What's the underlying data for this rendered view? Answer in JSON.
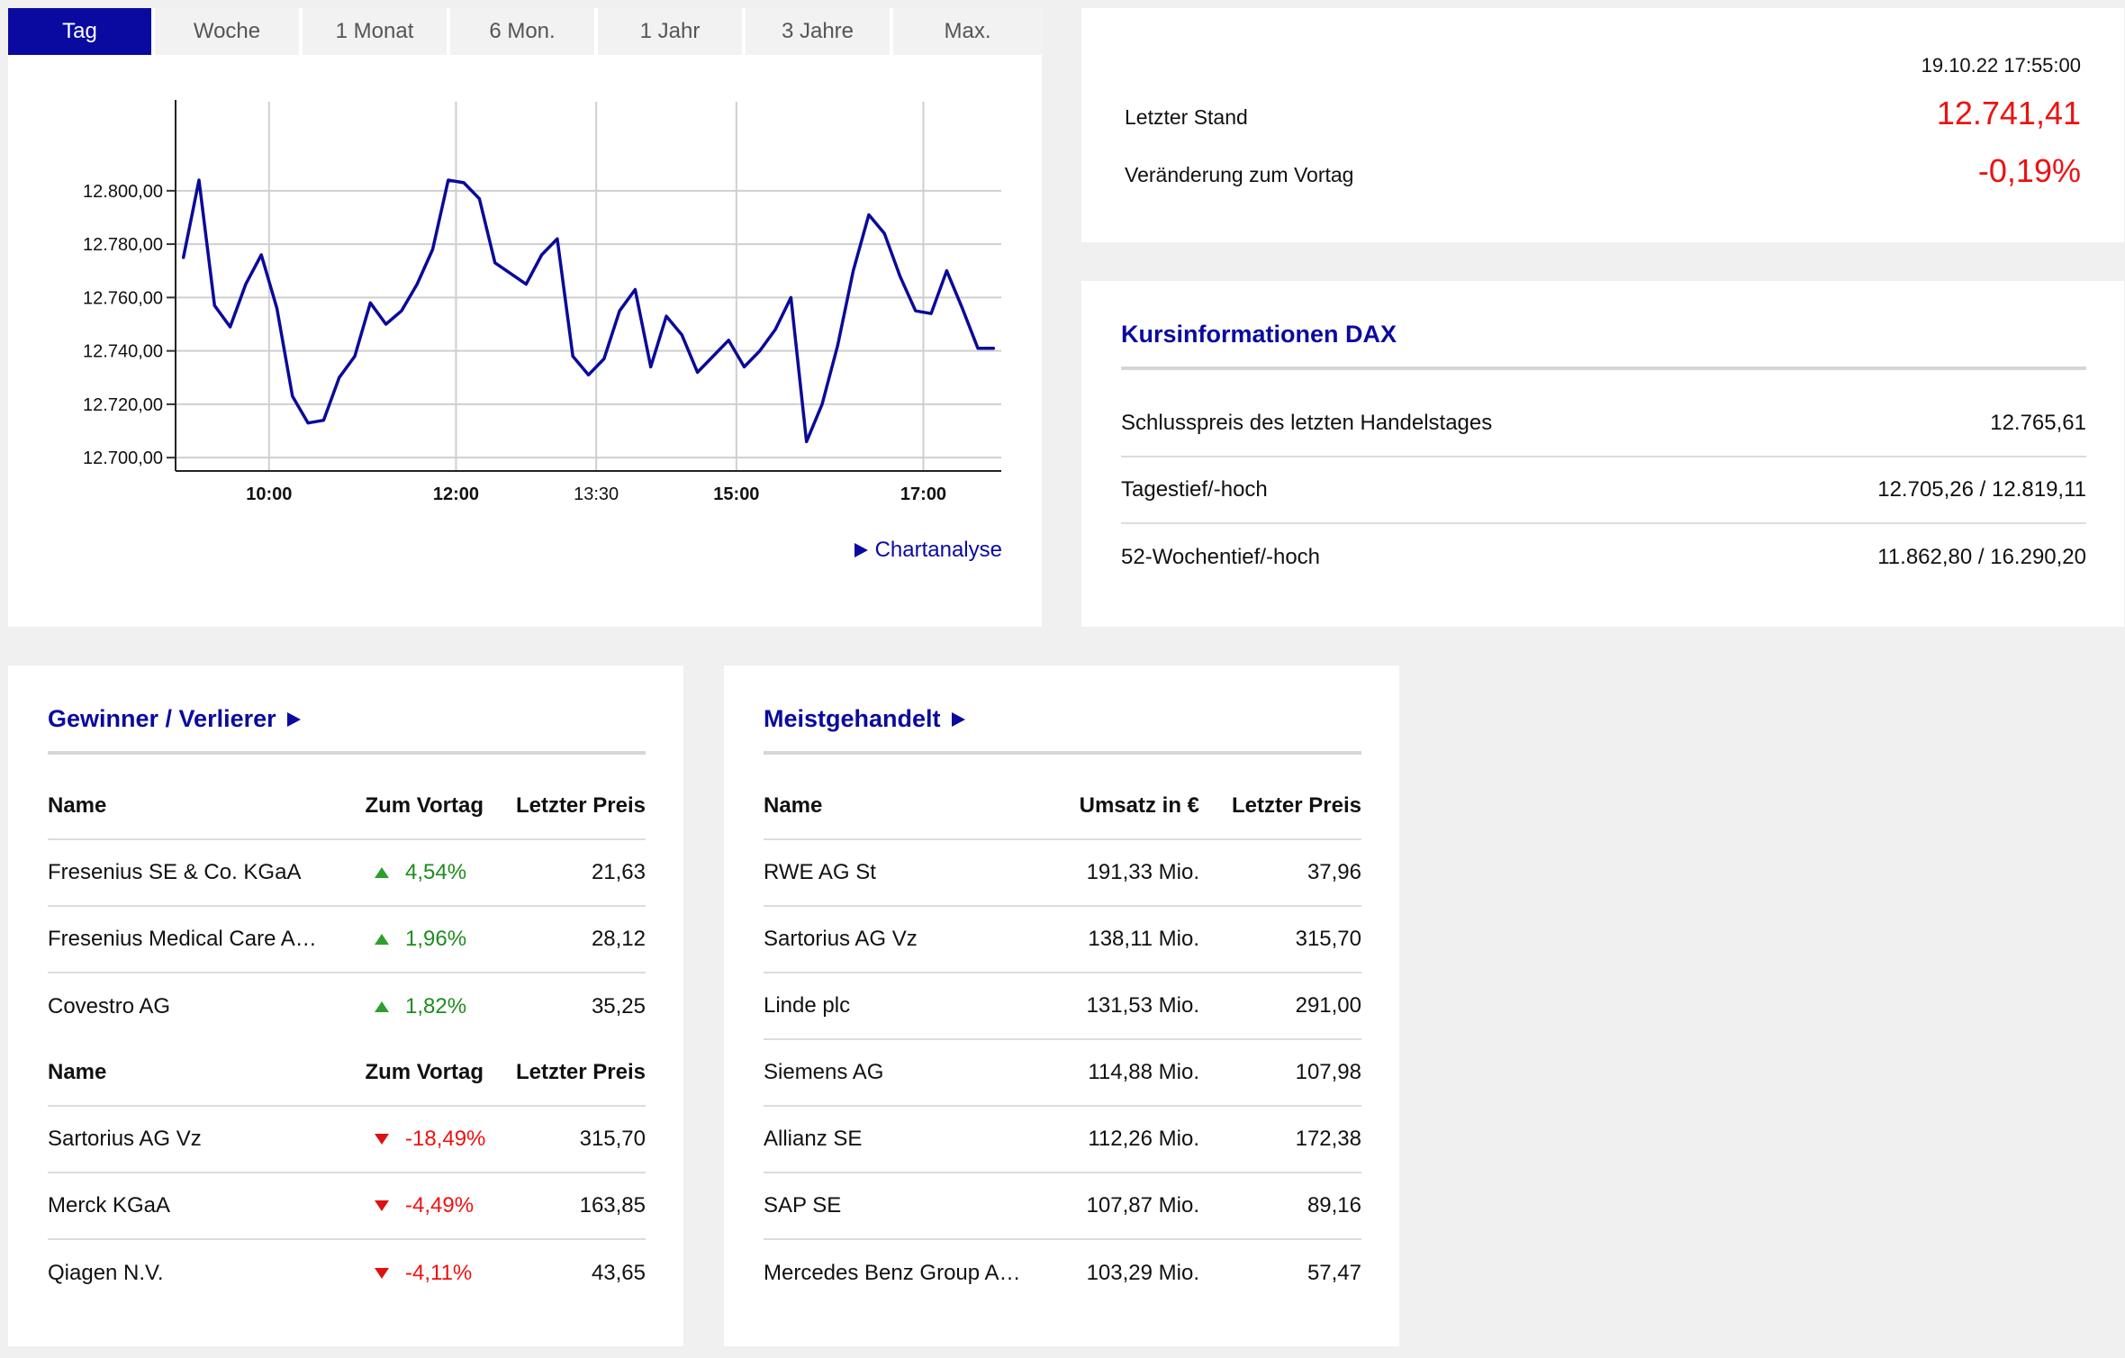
{
  "chart_tabs": [
    "Tag",
    "Woche",
    "1 Monat",
    "6 Mon.",
    "1 Jahr",
    "3 Jahre",
    "Max."
  ],
  "chart_link": "Chartanalyse",
  "chart_data": {
    "type": "line",
    "x_ticks": [
      "10:00",
      "12:00",
      "13:30",
      "15:00",
      "17:00"
    ],
    "x_ticks_bold": [
      true,
      true,
      false,
      true,
      true
    ],
    "y_ticks": [
      "12.800,00",
      "12.780,00",
      "12.760,00",
      "12.740,00",
      "12.720,00",
      "12.700,00"
    ],
    "ylim": [
      12695,
      12832
    ],
    "xlim": [
      "09:00",
      "17:50"
    ],
    "grid": true,
    "line_color": "#0a0a99",
    "series": [
      {
        "x": [
          "09:05",
          "09:15",
          "09:25",
          "09:35",
          "09:45",
          "09:55",
          "10:05",
          "10:15",
          "10:25",
          "10:35",
          "10:45",
          "10:55",
          "11:05",
          "11:15",
          "11:25",
          "11:35",
          "11:45",
          "11:55",
          "12:05",
          "12:15",
          "12:25",
          "12:35",
          "12:45",
          "12:55",
          "13:05",
          "13:15",
          "13:25",
          "13:35",
          "13:45",
          "13:55",
          "14:05",
          "14:15",
          "14:25",
          "14:35",
          "14:45",
          "14:55",
          "15:05",
          "15:15",
          "15:25",
          "15:35",
          "15:45",
          "15:55",
          "16:05",
          "16:15",
          "16:25",
          "16:35",
          "16:45",
          "16:55",
          "17:05",
          "17:15",
          "17:25",
          "17:35",
          "17:45"
        ],
        "values": [
          12775,
          12804,
          12757,
          12749,
          12765,
          12776,
          12756,
          12723,
          12713,
          12714,
          12730,
          12738,
          12758,
          12750,
          12755,
          12765,
          12778,
          12804,
          12803,
          12797,
          12773,
          12769,
          12765,
          12776,
          12782,
          12738,
          12731,
          12737,
          12755,
          12763,
          12734,
          12753,
          12746,
          12732,
          12738,
          12744,
          12734,
          12740,
          12748,
          12760,
          12706,
          12720,
          12742,
          12770,
          12791,
          12784,
          12768,
          12755,
          12754,
          12770,
          12756,
          12741,
          12741
        ]
      }
    ]
  },
  "quote": {
    "timestamp": "19.10.22 17:55:00",
    "last_label": "Letzter Stand",
    "last_value": "12.741,41",
    "change_label": "Veränderung zum Vortag",
    "change_value": "-0,19%",
    "value_color": "#ee1111"
  },
  "info": {
    "title": "Kursinformationen DAX",
    "rows": [
      {
        "label": "Schlusspreis des letzten Handelstages",
        "value": "12.765,61"
      },
      {
        "label": "Tagestief/-hoch",
        "value": "12.705,26 / 12.819,11"
      },
      {
        "label": "52-Wochentief/-hoch",
        "value": "11.862,80 / 16.290,20"
      }
    ]
  },
  "gainers_losers": {
    "title": "Gewinner / Verlierer",
    "headers": [
      "Name",
      "Zum Vortag",
      "Letzter Preis"
    ],
    "gainers": [
      {
        "name": "Fresenius SE & Co. KGaA",
        "change": "4,54%",
        "price": "21,63"
      },
      {
        "name": "Fresenius Medical Care AG & Co. KGaA",
        "change": "1,96%",
        "price": "28,12"
      },
      {
        "name": "Covestro AG",
        "change": "1,82%",
        "price": "35,25"
      }
    ],
    "losers": [
      {
        "name": "Sartorius AG Vz",
        "change": "-18,49%",
        "price": "315,70"
      },
      {
        "name": "Merck KGaA",
        "change": "-4,49%",
        "price": "163,85"
      },
      {
        "name": "Qiagen N.V.",
        "change": "-4,11%",
        "price": "43,65"
      }
    ],
    "up_color": "#2e9e2e",
    "down_color": "#dd1111"
  },
  "most_traded": {
    "title": "Meistgehandelt",
    "headers": [
      "Name",
      "Umsatz in €",
      "Letzter Preis"
    ],
    "rows": [
      {
        "name": "RWE AG St",
        "volume": "191,33 Mio.",
        "price": "37,96"
      },
      {
        "name": "Sartorius AG Vz",
        "volume": "138,11 Mio.",
        "price": "315,70"
      },
      {
        "name": "Linde plc",
        "volume": "131,53 Mio.",
        "price": "291,00"
      },
      {
        "name": "Siemens AG",
        "volume": "114,88 Mio.",
        "price": "107,98"
      },
      {
        "name": "Allianz SE",
        "volume": "112,26 Mio.",
        "price": "172,38"
      },
      {
        "name": "SAP SE",
        "volume": "107,87 Mio.",
        "price": "89,16"
      },
      {
        "name": "Mercedes Benz Group AG Namens-Aktien",
        "volume": "103,29 Mio.",
        "price": "57,47"
      }
    ]
  },
  "accent_color": "#0a0aa0"
}
